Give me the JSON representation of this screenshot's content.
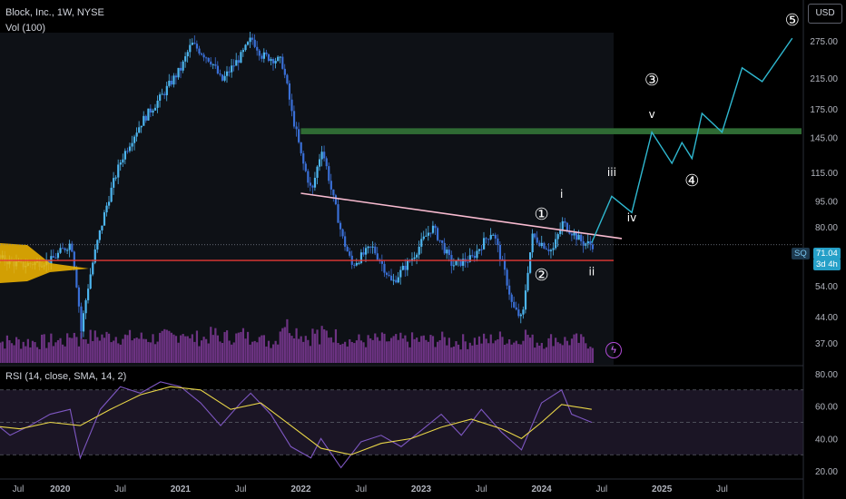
{
  "header": {
    "title": "Block, Inc., 1W, NYSE",
    "volume_label": "Vol (100)",
    "rsi_label": "RSI (14, close, SMA, 14, 2)"
  },
  "currency_button": "USD",
  "price_tag": {
    "ticker": "SQ",
    "price": "71.04",
    "countdown": "3d 4h"
  },
  "chart_data": [
    {
      "type": "line",
      "title": "Block, Inc., 1W, NYSE",
      "y_scale": "log",
      "x_ticks": [
        "Jul",
        "2020",
        "Jul",
        "2021",
        "Jul",
        "2022",
        "Jul",
        "2023",
        "Jul",
        "2024",
        "Jul",
        "2025",
        "Jul"
      ],
      "y_ticks": [
        37,
        44,
        54,
        65,
        80,
        95,
        115,
        145,
        175,
        215,
        275
      ],
      "ylim": [
        34,
        320
      ],
      "price_history": [
        [
          "2019-06",
          66
        ],
        [
          "2019-09",
          62
        ],
        [
          "2019-12",
          64
        ],
        [
          "2020-02",
          72
        ],
        [
          "2020-03",
          40
        ],
        [
          "2020-05",
          80
        ],
        [
          "2020-07",
          125
        ],
        [
          "2020-09",
          160
        ],
        [
          "2020-11",
          190
        ],
        [
          "2021-01",
          230
        ],
        [
          "2021-02",
          270
        ],
        [
          "2021-04",
          240
        ],
        [
          "2021-05",
          210
        ],
        [
          "2021-07",
          250
        ],
        [
          "2021-08",
          280
        ],
        [
          "2021-09",
          250
        ],
        [
          "2021-11",
          240
        ],
        [
          "2021-12",
          170
        ],
        [
          "2022-01",
          125
        ],
        [
          "2022-02",
          100
        ],
        [
          "2022-03",
          135
        ],
        [
          "2022-04",
          100
        ],
        [
          "2022-05",
          75
        ],
        [
          "2022-06",
          62
        ],
        [
          "2022-08",
          70
        ],
        [
          "2022-10",
          55
        ],
        [
          "2022-12",
          65
        ],
        [
          "2023-02",
          80
        ],
        [
          "2023-04",
          62
        ],
        [
          "2023-06",
          65
        ],
        [
          "2023-08",
          78
        ],
        [
          "2023-10",
          47
        ],
        [
          "2023-11",
          43
        ],
        [
          "2023-12",
          75
        ],
        [
          "2024-02",
          68
        ],
        [
          "2024-03",
          82
        ],
        [
          "2024-05",
          72
        ],
        [
          "2024-06",
          71
        ]
      ],
      "projection": [
        [
          "2024-06",
          72
        ],
        [
          "2024-08",
          98
        ],
        [
          "2024-10",
          88
        ],
        [
          "2024-12",
          150
        ],
        [
          "2025-02",
          122
        ],
        [
          "2025-03",
          140
        ],
        [
          "2025-04",
          126
        ],
        [
          "2025-05",
          170
        ],
        [
          "2025-07",
          150
        ],
        [
          "2025-09",
          230
        ],
        [
          "2025-11",
          210
        ],
        [
          "2026-02",
          280
        ]
      ],
      "resistance_zone": [
        148,
        154
      ],
      "support_level": 64,
      "wave_labels": [
        {
          "text": "①",
          "date": "2024-01",
          "price": 84
        },
        {
          "text": "②",
          "date": "2024-01",
          "price": 56
        },
        {
          "text": "i",
          "date": "2024-03",
          "price": 97
        },
        {
          "text": "ii",
          "date": "2024-06",
          "price": 58
        },
        {
          "text": "iii",
          "date": "2024-08",
          "price": 112
        },
        {
          "text": "iv",
          "date": "2024-10",
          "price": 83
        },
        {
          "text": "③",
          "date": "2024-12",
          "price": 205
        },
        {
          "text": "v",
          "date": "2024-12",
          "price": 165
        },
        {
          "text": "④",
          "date": "2025-04",
          "price": 105
        },
        {
          "text": "⑤",
          "date": "2026-02",
          "price": 305
        }
      ],
      "last_price": 71.04,
      "colors": {
        "up": "#4db6f0",
        "down": "#3a6fd6",
        "projection": "#2fb8d0",
        "resistance": "#2f6b34",
        "support": "#e53935",
        "trendline": "#f8bbd0",
        "volume": "#8e3fa8"
      }
    },
    {
      "type": "line",
      "title": "RSI (14, close, SMA, 14, 2)",
      "y_ticks": [
        20,
        40,
        60,
        80
      ],
      "ylim": [
        15,
        85
      ],
      "band": [
        30,
        70
      ],
      "rsi": [
        [
          "2019-06",
          52
        ],
        [
          "2019-08",
          42
        ],
        [
          "2019-10",
          48
        ],
        [
          "2019-12",
          55
        ],
        [
          "2020-02",
          58
        ],
        [
          "2020-03",
          28
        ],
        [
          "2020-05",
          58
        ],
        [
          "2020-07",
          72
        ],
        [
          "2020-09",
          68
        ],
        [
          "2020-11",
          75
        ],
        [
          "2021-01",
          72
        ],
        [
          "2021-03",
          62
        ],
        [
          "2021-05",
          48
        ],
        [
          "2021-07",
          62
        ],
        [
          "2021-08",
          68
        ],
        [
          "2021-10",
          55
        ],
        [
          "2021-12",
          35
        ],
        [
          "2022-02",
          28
        ],
        [
          "2022-03",
          40
        ],
        [
          "2022-05",
          22
        ],
        [
          "2022-07",
          38
        ],
        [
          "2022-09",
          42
        ],
        [
          "2022-11",
          35
        ],
        [
          "2023-01",
          45
        ],
        [
          "2023-03",
          55
        ],
        [
          "2023-05",
          42
        ],
        [
          "2023-07",
          58
        ],
        [
          "2023-09",
          44
        ],
        [
          "2023-11",
          33
        ],
        [
          "2024-01",
          62
        ],
        [
          "2024-03",
          70
        ],
        [
          "2024-04",
          55
        ],
        [
          "2024-06",
          50
        ]
      ],
      "sma": [
        [
          "2019-06",
          48
        ],
        [
          "2019-09",
          46
        ],
        [
          "2019-12",
          50
        ],
        [
          "2020-03",
          48
        ],
        [
          "2020-06",
          58
        ],
        [
          "2020-09",
          67
        ],
        [
          "2020-12",
          72
        ],
        [
          "2021-03",
          70
        ],
        [
          "2021-06",
          58
        ],
        [
          "2021-09",
          62
        ],
        [
          "2021-12",
          48
        ],
        [
          "2022-03",
          34
        ],
        [
          "2022-06",
          30
        ],
        [
          "2022-09",
          37
        ],
        [
          "2022-12",
          40
        ],
        [
          "2023-03",
          47
        ],
        [
          "2023-06",
          52
        ],
        [
          "2023-09",
          46
        ],
        [
          "2023-11",
          40
        ],
        [
          "2024-01",
          50
        ],
        [
          "2024-03",
          61
        ],
        [
          "2024-06",
          58
        ]
      ]
    }
  ]
}
